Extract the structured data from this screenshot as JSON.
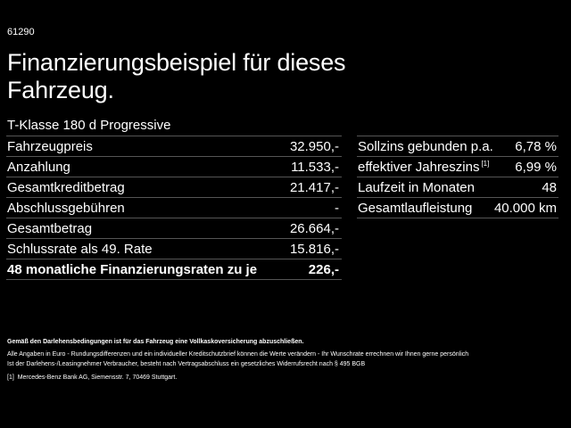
{
  "code": "61290",
  "title": "Finanzierungsbeispiel für dieses Fahrzeug.",
  "model": "T-Klasse 180 d Progressive",
  "left_rows": [
    {
      "label": "Fahrzeugpreis",
      "value": "32.950,-"
    },
    {
      "label": "Anzahlung",
      "value": "11.533,-"
    },
    {
      "label": "Gesamtkreditbetrag",
      "value": "21.417,-"
    },
    {
      "label": "Abschlussgebühren",
      "value": "-"
    },
    {
      "label": "Gesamtbetrag",
      "value": "26.664,-"
    },
    {
      "label": "Schlussrate als 49. Rate",
      "value": "15.816,-"
    },
    {
      "label": "48 monatliche Finanzierungsraten zu je",
      "value": "226,-"
    }
  ],
  "right_rows": [
    {
      "label": "Sollzins gebunden p.a.",
      "value": "6,78 %"
    },
    {
      "label": "effektiver Jahreszins",
      "sup": "[1]",
      "value": "6,99 %"
    },
    {
      "label": "Laufzeit in Monaten",
      "value": "48"
    },
    {
      "label": "Gesamtlaufleistung",
      "value": "40.000 km"
    }
  ],
  "footer": {
    "insurance": "Gemäß den Darlehensbedingungen ist für das Fahrzeug eine Vollkaskoversicherung abzuschließen.",
    "line1": "Alle Angaben in Euro - Rundungsdifferenzen und ein individueller Kreditschutzbrief können die Werte verändern - Ihr Wunschrate errechnen wir Ihnen gerne persönlich",
    "line2": "Ist der Darlehens-/Leasingnehmer Verbraucher, besteht nach Vertragsabschluss ein gesetzliches Widerrufsrecht nach § 495 BGB",
    "footnote_mark": "[1]",
    "footnote": "Mercedes-Benz Bank AG, Siemensstr. 7, 70469 Stuttgart."
  }
}
